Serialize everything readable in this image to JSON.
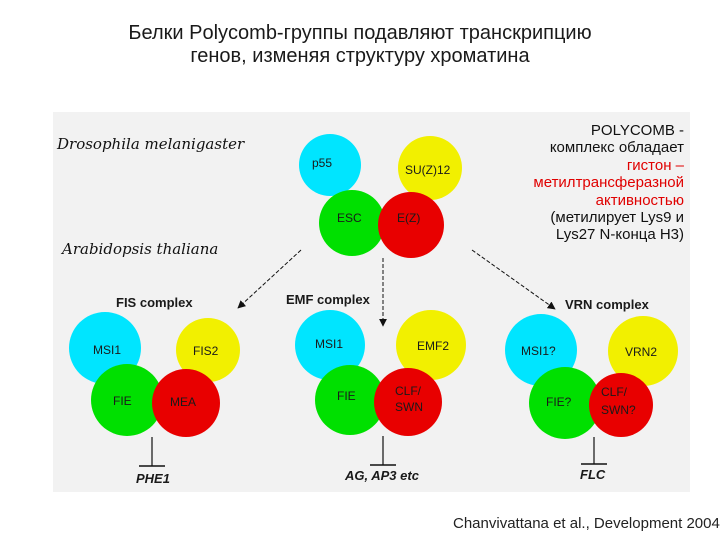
{
  "title": {
    "line1": "Белки Polycomb-группы подавляют транскрипцию",
    "line2": "генов, изменяя структуру хроматина"
  },
  "species": {
    "drosophila": "Drosophila melanigaster",
    "arabidopsis": "Arabidopsis thaliana"
  },
  "polycomb_note": {
    "line1": "POLYCOMB -",
    "line2": "комплекс обладает",
    "line3_red": "гистон –",
    "line4_red": "метилтрансферазной",
    "line5_red": "активностью",
    "line6": "(метилирует Lys9 и",
    "line7": "Lys27 N-конца H3)"
  },
  "complexes": {
    "drosophila": {
      "p55": "p55",
      "suz12": "SU(Z)12",
      "esc": "ESC",
      "ez": "E(Z)"
    },
    "fis": {
      "label": "FIS complex",
      "msi": "MSI1",
      "fis2": "FIS2",
      "fie": "FIE",
      "mea": "MEA",
      "target": "PHE1"
    },
    "emf": {
      "label": "EMF complex",
      "msi": "MSI1",
      "emf2": "EMF2",
      "fie": "FIE",
      "clf_line1": "CLF/",
      "clf_line2": "SWN",
      "target": "AG, AP3 etc"
    },
    "vrn": {
      "label": "VRN complex",
      "msi": "MSI1?",
      "vrn2": "VRN2",
      "fie": "FIE?",
      "clf_line1": "CLF/",
      "clf_line2": "SWN?",
      "target": "FLC"
    }
  },
  "colors": {
    "cyan": "#00e5ff",
    "yellow": "#f2f000",
    "green": "#00e000",
    "red": "#e80000",
    "panel": "#f2f2f2",
    "highlight_red": "#e00000"
  },
  "citation": "Chanvivattana et al., Development 2004"
}
